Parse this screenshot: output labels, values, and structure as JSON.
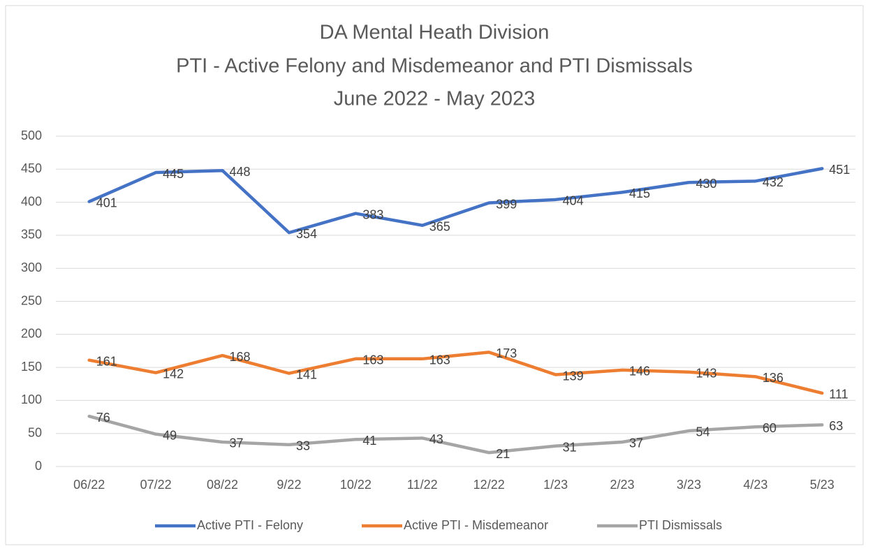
{
  "chart_data": {
    "type": "line",
    "title": [
      "DA Mental Heath Division",
      "PTI - Active Felony and Misdemeanor and PTI Dismissals",
      "June 2022 - May 2023"
    ],
    "categories": [
      "06/22",
      "07/22",
      "08/22",
      "9/22",
      "10/22",
      "11/22",
      "12/22",
      "1/23",
      "2/23",
      "3/23",
      "4/23",
      "5/23"
    ],
    "series": [
      {
        "name": "Active PTI - Felony",
        "color": "#4472c4",
        "values": [
          401,
          445,
          448,
          354,
          383,
          365,
          399,
          404,
          415,
          430,
          432,
          451
        ]
      },
      {
        "name": "Active PTI - Misdemeanor",
        "color": "#ed7d31",
        "values": [
          161,
          142,
          168,
          141,
          163,
          163,
          173,
          139,
          146,
          143,
          136,
          111
        ]
      },
      {
        "name": "PTI Dismissals",
        "color": "#a5a5a5",
        "values": [
          76,
          49,
          37,
          33,
          41,
          43,
          21,
          31,
          37,
          54,
          60,
          63
        ]
      }
    ],
    "ylim": [
      0,
      500
    ],
    "yticks": [
      0,
      50,
      100,
      150,
      200,
      250,
      300,
      350,
      400,
      450,
      500
    ],
    "grid": true,
    "legend": "bottom"
  }
}
